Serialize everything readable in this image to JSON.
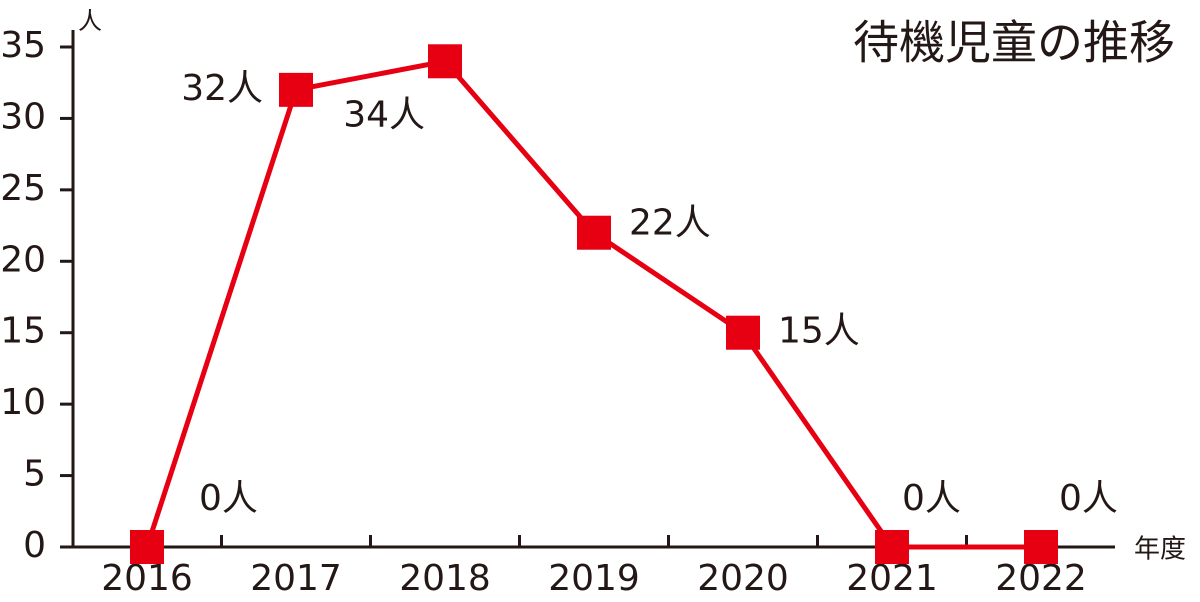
{
  "chart_data": {
    "type": "line",
    "title": "待機児童の推移",
    "y_label": "人",
    "x_label": "年度",
    "categories": [
      "2016",
      "2017",
      "2018",
      "2019",
      "2020",
      "2021",
      "2022"
    ],
    "series": [
      {
        "name": "待機児童",
        "color": "#e60012",
        "values": [
          0,
          32,
          34,
          22,
          15,
          0,
          0
        ],
        "value_labels": [
          "0人",
          "32人",
          "34人",
          "22人",
          "15人",
          "0人",
          "0人"
        ]
      }
    ],
    "ylim": [
      0,
      35
    ],
    "yticks": [
      0,
      5,
      10,
      15,
      20,
      25,
      30,
      35
    ],
    "grid": false
  }
}
